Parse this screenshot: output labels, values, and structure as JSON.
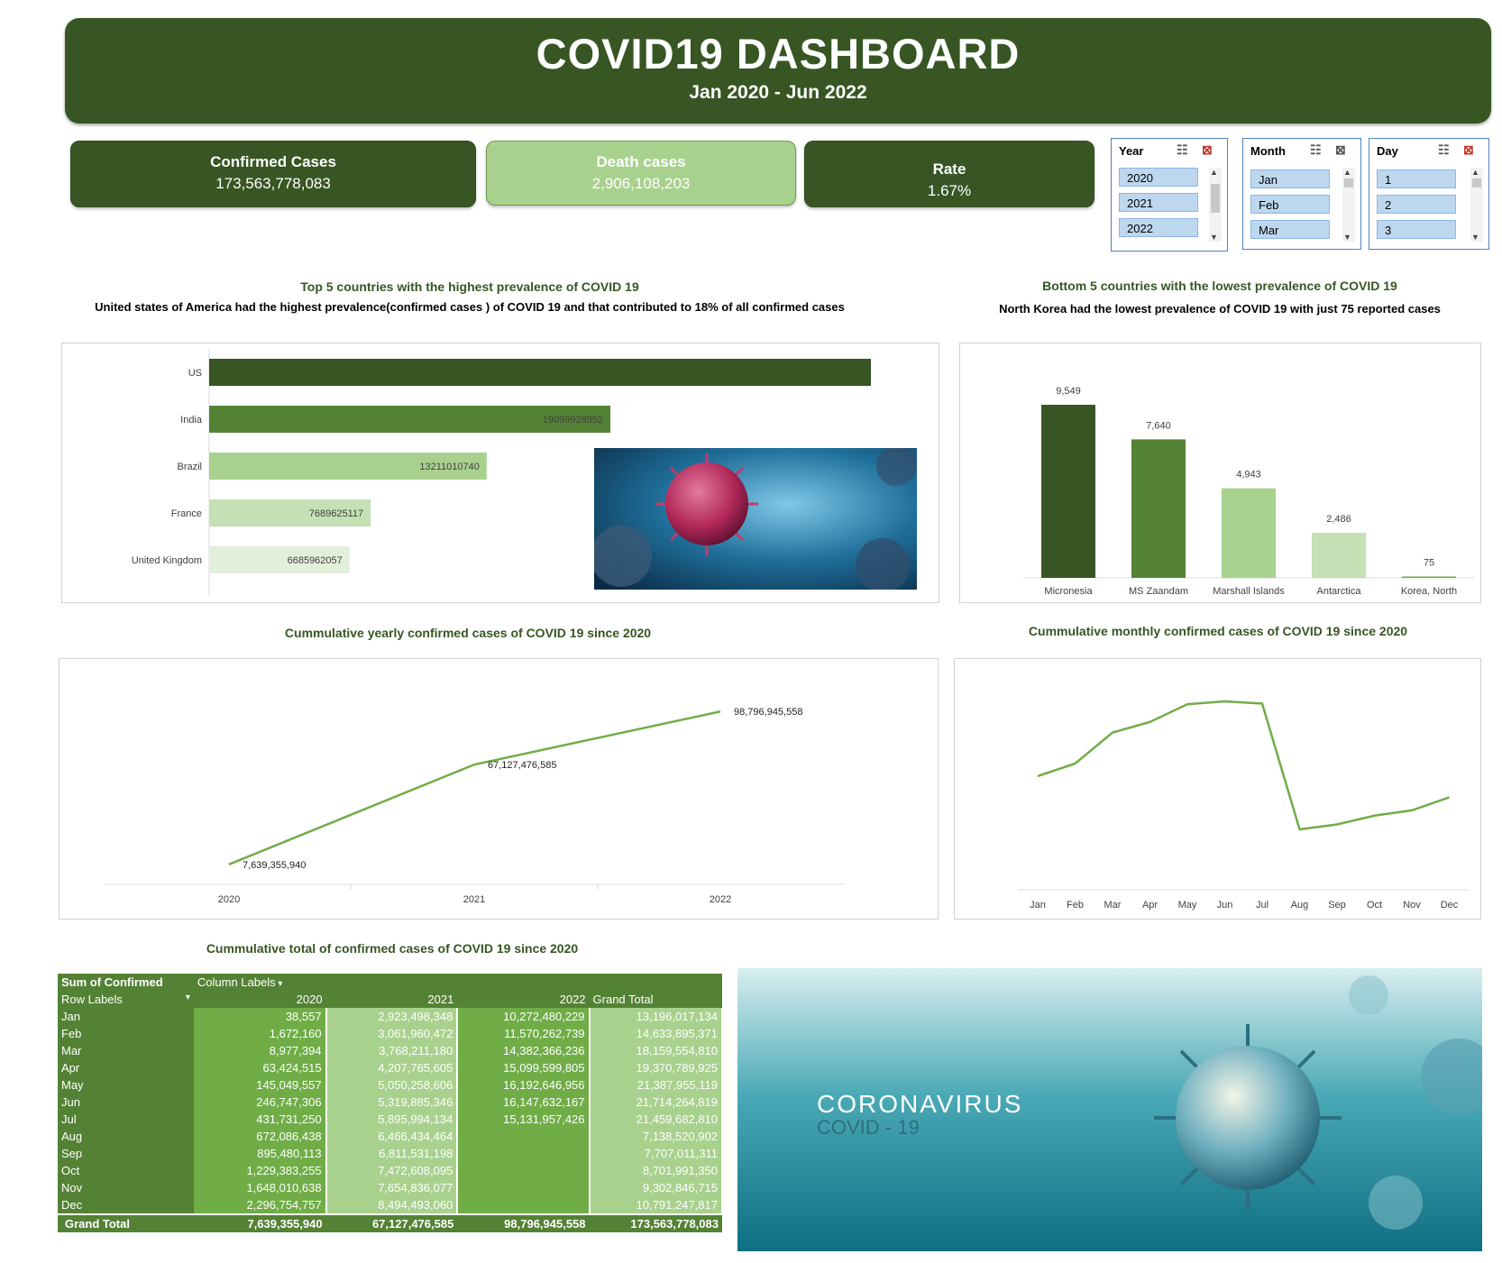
{
  "header": {
    "title": "COVID19 DASHBOARD",
    "subtitle": "Jan 2020 - Jun 2022"
  },
  "kpis": {
    "confirmed": {
      "label": "Confirmed Cases",
      "value": "173,563,778,083"
    },
    "deaths": {
      "label": "Death cases",
      "value": "2,906,108,203"
    },
    "rate": {
      "label": "Rate",
      "value": "1.67%"
    }
  },
  "slicers": {
    "year": {
      "title": "Year",
      "items": [
        "2020",
        "2021",
        "2022"
      ]
    },
    "month": {
      "title": "Month",
      "items": [
        "Jan",
        "Feb",
        "Mar"
      ]
    },
    "day": {
      "title": "Day",
      "items": [
        "1",
        "2",
        "3"
      ]
    }
  },
  "sections": {
    "top5": {
      "title": "Top 5 countries with the highest prevalence of COVID 19",
      "subtitle": "United states of America had the highest prevalence(confirmed cases ) of COVID 19 and that contributed to 18% of all confirmed cases"
    },
    "bottom5": {
      "title": "Bottom 5 countries with the lowest prevalence of COVID 19",
      "subtitle": "North Korea had the lowest prevalence of COVID 19 with just 75 reported cases"
    },
    "yearly": {
      "title": "Cummulative yearly confirmed cases of COVID 19 since 2020"
    },
    "monthly": {
      "title": "Cummulative monthly confirmed cases of COVID 19 since 2020"
    },
    "table": {
      "title": "Cummulative total of confirmed cases of COVID 19 since 2020"
    }
  },
  "chart_data": [
    {
      "type": "bar",
      "orientation": "horizontal",
      "categories": [
        "US",
        "India",
        "Brazil",
        "France",
        "United Kingdom"
      ],
      "values": [
        31500000000,
        19099928952,
        13211010740,
        7689625117,
        6685962057
      ],
      "data_labels": [
        "",
        "19099928952",
        "13211010740",
        "7689625117",
        "6685962057"
      ],
      "colors": [
        "#375623",
        "#548235",
        "#a9d18e",
        "#c5e0b4",
        "#e2efda"
      ],
      "grid": false
    },
    {
      "type": "bar",
      "categories": [
        "Micronesia",
        "MS Zaandam",
        "Marshall Islands",
        "Antarctica",
        "Korea, North"
      ],
      "values": [
        9549,
        7640,
        4943,
        2486,
        75
      ],
      "data_labels": [
        "9,549",
        "7,640",
        "4,943",
        "2,486",
        "75"
      ],
      "colors": [
        "#375623",
        "#548235",
        "#a9d18e",
        "#c5e0b4",
        "#70ad47"
      ],
      "grid": false
    },
    {
      "type": "line",
      "x": [
        "2020",
        "2021",
        "2022"
      ],
      "values": [
        7639355940,
        67127476585,
        98796945558
      ],
      "data_labels": [
        "7,639,355,940",
        "67,127,476,585",
        "98,796,945,558"
      ],
      "color": "#70ad47",
      "grid": false
    },
    {
      "type": "line",
      "x": [
        "Jan",
        "Feb",
        "Mar",
        "Apr",
        "May",
        "Jun",
        "Jul",
        "Aug",
        "Sep",
        "Oct",
        "Nov",
        "Dec"
      ],
      "values": [
        13196017134,
        14633895371,
        18159554810,
        19370789925,
        21387955119,
        21714264819,
        21459682810,
        7138520902,
        7707011311,
        8701991350,
        9302846715,
        10791247817
      ],
      "color": "#70ad47",
      "grid": false
    },
    {
      "type": "table",
      "header": {
        "corner": "Sum of Confirmed",
        "column_labels": "Column Labels",
        "row_labels": "Row Labels",
        "columns": [
          "2020",
          "2021",
          "2022",
          "Grand Total"
        ]
      },
      "rows": [
        {
          "label": "Jan",
          "cells": [
            "38,557",
            "2,923,498,348",
            "10,272,480,229",
            "13,196,017,134"
          ]
        },
        {
          "label": "Feb",
          "cells": [
            "1,672,160",
            "3,061,960,472",
            "11,570,262,739",
            "14,633,895,371"
          ]
        },
        {
          "label": "Mar",
          "cells": [
            "8,977,394",
            "3,768,211,180",
            "14,382,366,236",
            "18,159,554,810"
          ]
        },
        {
          "label": "Apr",
          "cells": [
            "63,424,515",
            "4,207,765,605",
            "15,099,599,805",
            "19,370,789,925"
          ]
        },
        {
          "label": "May",
          "cells": [
            "145,049,557",
            "5,050,258,606",
            "16,192,646,956",
            "21,387,955,119"
          ]
        },
        {
          "label": "Jun",
          "cells": [
            "246,747,306",
            "5,319,885,346",
            "16,147,632,167",
            "21,714,264,819"
          ]
        },
        {
          "label": "Jul",
          "cells": [
            "431,731,250",
            "5,895,994,134",
            "15,131,957,426",
            "21,459,682,810"
          ]
        },
        {
          "label": "Aug",
          "cells": [
            "672,086,438",
            "6,466,434,464",
            "",
            "7,138,520,902"
          ]
        },
        {
          "label": "Sep",
          "cells": [
            "895,480,113",
            "6,811,531,198",
            "",
            "7,707,011,311"
          ]
        },
        {
          "label": "Oct",
          "cells": [
            "1,229,383,255",
            "7,472,608,095",
            "",
            "8,701,991,350"
          ]
        },
        {
          "label": "Nov",
          "cells": [
            "1,648,010,638",
            "7,654,836,077",
            "",
            "9,302,846,715"
          ]
        },
        {
          "label": "Dec",
          "cells": [
            "2,296,754,757",
            "8,494,493,060",
            "",
            "10,791,247,817"
          ]
        }
      ],
      "total": {
        "label": "Grand Total",
        "cells": [
          "7,639,355,940",
          "67,127,476,585",
          "98,796,945,558",
          "173,563,778,083"
        ]
      }
    }
  ],
  "banner_image": {
    "title": "CORONAVIRUS",
    "subtitle": "COVID - 19"
  },
  "colors": {
    "dark_green": "#375623",
    "mid_green": "#548235",
    "green": "#70ad47",
    "light_green": "#a9d18e"
  }
}
